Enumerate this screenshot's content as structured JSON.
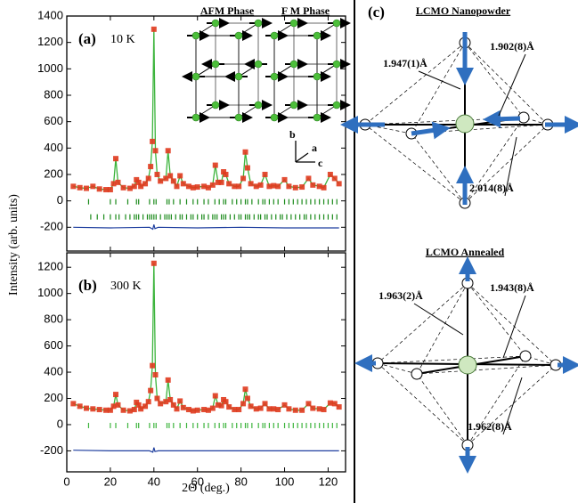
{
  "chart_data": [
    {
      "type": "line",
      "panel_label": "(a)",
      "temperature": "10 K",
      "ylabel": "Intensity (arb. units)",
      "xlim": [
        0,
        128
      ],
      "xticks": [
        0,
        20,
        40,
        60,
        80,
        100,
        120
      ],
      "ylim": [
        -380,
        1400
      ],
      "yticks": [
        -200,
        0,
        200,
        400,
        600,
        800,
        1000,
        1200,
        1400
      ],
      "x": [
        3,
        6,
        9,
        12,
        15,
        18,
        20,
        21.5,
        22.5,
        23.5,
        26,
        29,
        31,
        32,
        33,
        34,
        36,
        37.5,
        38.5,
        39.3,
        40,
        40.7,
        41.5,
        43,
        45.5,
        46.5,
        47.5,
        49,
        50.5,
        52,
        53.5,
        56,
        58,
        60,
        63,
        65,
        67,
        68.2,
        69.5,
        71,
        72,
        73,
        74.5,
        77,
        79,
        81,
        82,
        83,
        84.5,
        87,
        89,
        91,
        93,
        95,
        97,
        100,
        102,
        105,
        108,
        111,
        113,
        116,
        118,
        121,
        123,
        125
      ],
      "values": [
        110,
        100,
        95,
        110,
        90,
        85,
        85,
        130,
        320,
        140,
        100,
        95,
        110,
        160,
        140,
        110,
        130,
        170,
        260,
        450,
        1300,
        380,
        200,
        150,
        170,
        380,
        190,
        150,
        110,
        190,
        130,
        110,
        100,
        105,
        110,
        100,
        120,
        270,
        140,
        140,
        220,
        200,
        130,
        110,
        110,
        170,
        370,
        250,
        130,
        110,
        120,
        200,
        110,
        115,
        110,
        160,
        110,
        100,
        105,
        170,
        120,
        110,
        100,
        200,
        170,
        130
      ],
      "color": "#e03a1e",
      "fit_color": "#3cb43c",
      "difference": {
        "color": "#1f3f9f",
        "x": [
          3,
          20,
          38,
          39.5,
          40,
          40.5,
          42,
          60,
          80,
          100,
          125
        ],
        "values": [
          -200,
          -205,
          -200,
          -215,
          -180,
          -210,
          -200,
          -205,
          -200,
          -205,
          -205
        ]
      },
      "bragg": [
        {
          "color": "#1a8a1a",
          "positions": [
            10,
            20,
            22.5,
            28,
            32,
            33,
            38,
            40,
            41,
            46,
            47,
            49,
            52,
            55,
            58,
            60,
            63,
            65,
            68,
            70,
            72,
            73,
            76,
            78,
            80,
            82,
            83,
            85,
            88,
            90,
            91,
            93,
            95,
            97,
            100,
            102,
            104,
            106,
            108,
            110,
            112,
            114,
            116,
            118,
            120,
            122,
            124
          ]
        },
        {
          "color": "#1a8a1a",
          "positions": [
            11,
            14,
            17,
            20,
            22.5,
            24,
            27,
            29,
            31,
            32,
            33,
            35,
            37,
            38,
            39,
            40,
            41,
            43,
            45,
            46,
            47,
            48,
            50,
            52,
            53,
            55,
            57,
            58,
            60,
            62,
            63,
            65,
            67,
            68,
            69,
            71,
            72,
            73,
            75,
            77,
            79,
            80,
            82,
            83,
            84,
            86,
            88,
            89,
            91,
            92,
            94,
            96,
            98,
            99,
            101,
            103,
            105,
            107,
            109,
            110,
            112,
            114,
            116,
            118,
            120,
            122,
            124
          ]
        }
      ],
      "insets": {
        "afm": "AFM Phase",
        "fm": "F M Phase",
        "axes": [
          "b",
          "a",
          "c"
        ]
      }
    },
    {
      "type": "line",
      "panel_label": "(b)",
      "temperature": "300 K",
      "xlabel": "2Θ (deg.)",
      "xlim": [
        0,
        128
      ],
      "xticks": [
        0,
        20,
        40,
        60,
        80,
        100,
        120
      ],
      "ylim": [
        -360,
        1310
      ],
      "yticks": [
        -200,
        0,
        200,
        400,
        600,
        800,
        1000,
        1200
      ],
      "x": [
        3,
        6,
        9,
        12,
        15,
        18,
        20,
        21.5,
        22.5,
        23.5,
        26,
        29,
        31,
        32,
        33,
        34,
        36,
        37.5,
        38.5,
        39.3,
        40,
        40.7,
        41.5,
        43,
        45.5,
        46.5,
        47.5,
        49,
        50.5,
        52,
        53.5,
        56,
        58,
        60,
        63,
        65,
        67,
        68.2,
        69.5,
        71,
        72,
        73,
        74.5,
        77,
        79,
        81,
        82,
        83,
        84.5,
        87,
        89,
        91,
        93,
        95,
        97,
        100,
        102,
        105,
        108,
        111,
        113,
        116,
        118,
        121,
        123,
        125
      ],
      "values": [
        160,
        140,
        125,
        120,
        115,
        110,
        110,
        140,
        230,
        150,
        110,
        105,
        115,
        170,
        150,
        120,
        140,
        175,
        260,
        450,
        1230,
        380,
        200,
        160,
        175,
        340,
        190,
        150,
        120,
        180,
        130,
        115,
        105,
        110,
        115,
        110,
        125,
        220,
        150,
        145,
        190,
        175,
        135,
        115,
        115,
        160,
        270,
        200,
        140,
        120,
        125,
        160,
        120,
        120,
        115,
        150,
        120,
        110,
        110,
        160,
        125,
        120,
        115,
        165,
        160,
        135
      ],
      "color": "#e03a1e",
      "fit_color": "#3cb43c",
      "difference": {
        "color": "#1f3f9f",
        "x": [
          3,
          20,
          38,
          39.5,
          40,
          40.5,
          42,
          60,
          80,
          100,
          125
        ],
        "values": [
          -195,
          -200,
          -200,
          -210,
          -175,
          -205,
          -200,
          -200,
          -200,
          -200,
          -200
        ]
      },
      "bragg": [
        {
          "color": "#3cb43c",
          "positions": [
            10,
            20,
            22.5,
            28,
            32,
            33,
            38,
            40,
            41,
            46,
            47,
            49,
            52,
            55,
            58,
            60,
            63,
            65,
            68,
            70,
            72,
            73,
            76,
            78,
            80,
            82,
            83,
            85,
            88,
            90,
            91,
            93,
            95,
            97,
            100,
            102,
            104,
            106,
            108,
            110,
            112,
            114,
            116,
            118,
            120,
            122,
            124
          ]
        }
      ]
    }
  ],
  "panel_c": {
    "label": "(c)",
    "octahedra": [
      {
        "title": "LCMO Nanopowder",
        "bonds": [
          "1.947(1)Å",
          "1.902(8)Å",
          "2.014(8)Å"
        ]
      },
      {
        "title": "LCMO Annealed",
        "bonds": [
          "1.963(2)Å",
          "1.943(8)Å",
          "1.962(8)Å"
        ]
      }
    ]
  }
}
